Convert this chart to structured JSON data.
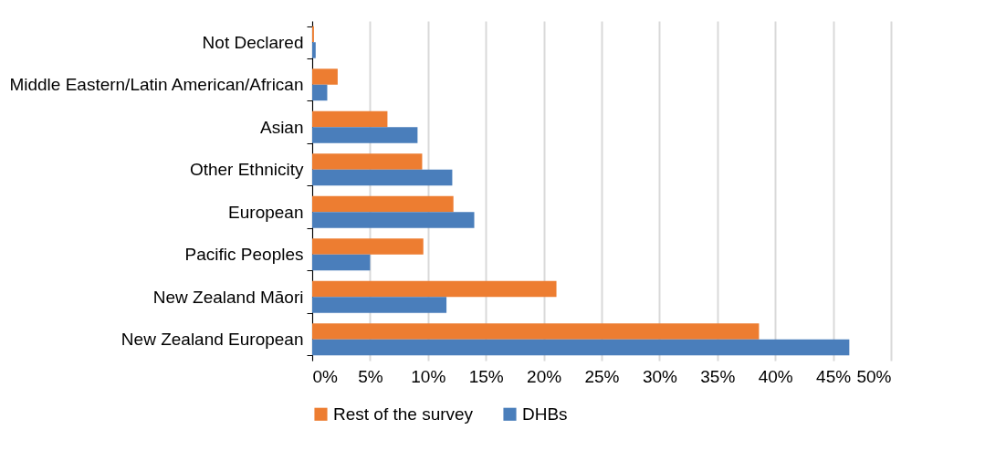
{
  "chart_data": {
    "type": "bar",
    "orientation": "horizontal",
    "categories": [
      "Not Declared",
      "Middle Eastern/Latin American/African",
      "Asian",
      "Other Ethnicity",
      "European",
      "Pacific Peoples",
      "New Zealand Māori",
      "New Zealand European"
    ],
    "series": [
      {
        "name": "Rest of the survey",
        "color": "#ed7d31",
        "values": [
          0.15,
          2.2,
          6.5,
          9.5,
          12.2,
          9.6,
          21.1,
          38.6
        ]
      },
      {
        "name": "DHBs",
        "color": "#4a7ebb",
        "values": [
          0.3,
          1.3,
          9.1,
          12.1,
          14.0,
          5.0,
          11.6,
          46.4
        ]
      }
    ],
    "xlim": [
      0,
      50
    ],
    "xticks": [
      {
        "value": 0,
        "label": "0%"
      },
      {
        "value": 5,
        "label": "5%"
      },
      {
        "value": 10,
        "label": "10%"
      },
      {
        "value": 15,
        "label": "15%"
      },
      {
        "value": 20,
        "label": "20%"
      },
      {
        "value": 25,
        "label": "25%"
      },
      {
        "value": 30,
        "label": "30%"
      },
      {
        "value": 35,
        "label": "35%"
      },
      {
        "value": 40,
        "label": "40%"
      },
      {
        "value": 45,
        "label": "45%"
      },
      {
        "value": 50,
        "label": "50%"
      }
    ],
    "grid": "x",
    "legend": "bottom"
  }
}
